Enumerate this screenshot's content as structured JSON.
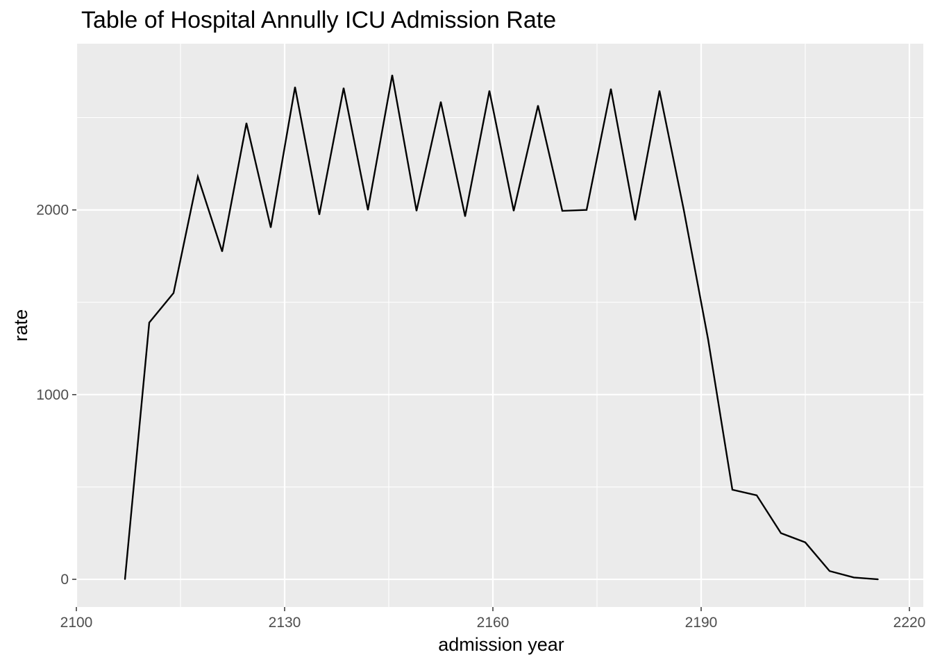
{
  "chart_data": {
    "type": "line",
    "title": "Table of Hospital Annully ICU Admission Rate",
    "xlabel": "admission year",
    "ylabel": "rate",
    "xlim": [
      2100,
      2222
    ],
    "ylim": [
      -150,
      2900
    ],
    "x_ticks": [
      2100,
      2130,
      2160,
      2190,
      2220
    ],
    "y_ticks": [
      0,
      1000,
      2000
    ],
    "grid": true,
    "legend": "none",
    "colors": {
      "panel": "#ebebeb",
      "grid": "#ffffff",
      "line": "#000000",
      "tick": "#4d4d4d"
    },
    "series": [
      {
        "x": [
          2107,
          2110.5,
          2114,
          2117.5,
          2121,
          2124.5,
          2128,
          2131.5,
          2135,
          2138.5,
          2142,
          2145.5,
          2149,
          2152.5,
          2156,
          2159.5,
          2163,
          2166.5,
          2170,
          2173.5,
          2177,
          2180.5,
          2184,
          2187.5,
          2191,
          2194.5,
          2198,
          2201.5,
          2205,
          2208.5,
          2212,
          2215.5
        ],
        "y": [
          0,
          1390,
          1550,
          2180,
          1775,
          2470,
          1905,
          2665,
          1975,
          2660,
          2000,
          2730,
          1995,
          2585,
          1965,
          2645,
          1995,
          2565,
          1995,
          2000,
          2655,
          1945,
          2645,
          2000,
          1300,
          485,
          455,
          250,
          200,
          45,
          10,
          0
        ]
      }
    ]
  }
}
